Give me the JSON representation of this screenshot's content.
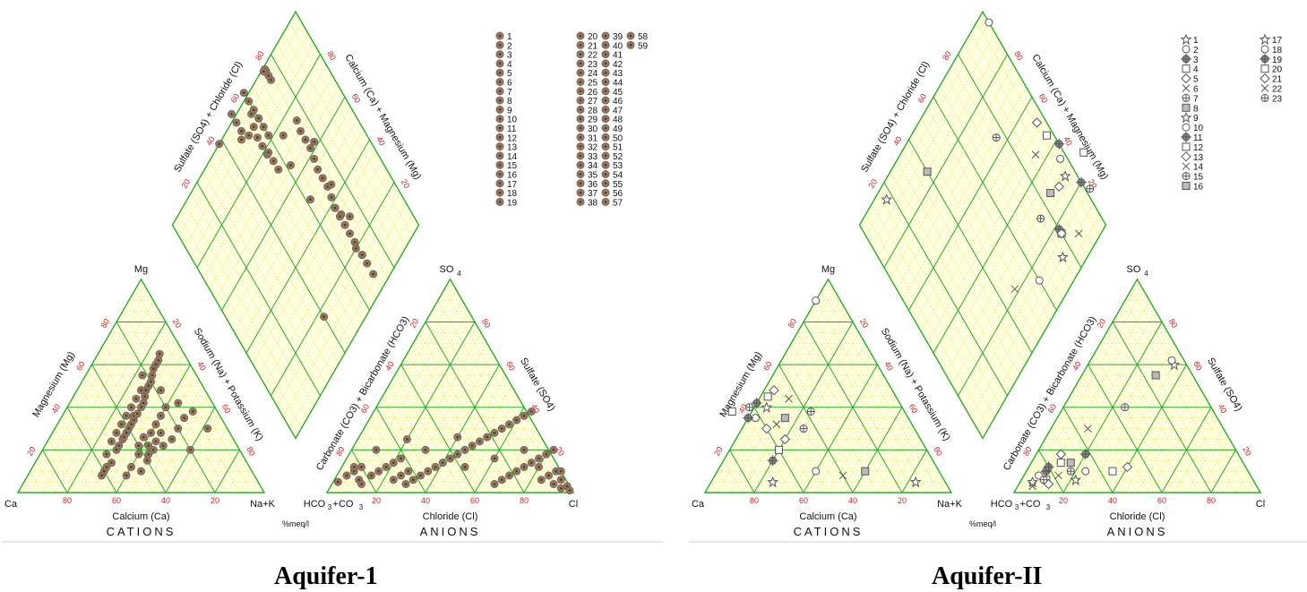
{
  "colors": {
    "fill": "#ffffe0",
    "grid_major": "#22aa22",
    "grid_minor": "#e3e36a",
    "tick": "#cc2222",
    "arrow": "#dd6666",
    "point_fill": "#a0785a",
    "point_edge": "#666666",
    "marker_edge": "#555555",
    "text": "#111111"
  },
  "chart_data": [
    {
      "type": "piper",
      "caption": "Aquifer-1",
      "marker_style": "dot",
      "labels": {
        "mg": "Mg",
        "ca": "Ca",
        "nak": "Na+K",
        "so4": "SO",
        "hco3": "HCO",
        "cl": "Cl",
        "sub4": "4",
        "sub3": "3",
        "co3": "+CO",
        "mg_axis": "Magnesium (Mg)",
        "na_axis": "Sodium (Na) + Potassium (K)",
        "ca_axis": "Calcium (Ca)",
        "cl_axis": "Chloride (Cl)",
        "co3_axis": "Carbonate (CO3) + Bicarbonate (HCO3)",
        "so4_axis": "Sulfate (SO4)",
        "d_so4cl": "Sulfate (SO4) + Chloride (Cl)",
        "d_camg": "Calcium (Ca) + Magnesium (Mg)",
        "cations": "CATIONS",
        "anions": "ANIONS",
        "meq": "%meq/l"
      },
      "ticks": [
        "20",
        "40",
        "60",
        "80"
      ],
      "legend": [
        "1",
        "2",
        "3",
        "4",
        "5",
        "6",
        "7",
        "8",
        "9",
        "10",
        "11",
        "12",
        "13",
        "14",
        "15",
        "16",
        "17",
        "18",
        "19",
        "20",
        "21",
        "22",
        "23",
        "24",
        "25",
        "26",
        "27",
        "28",
        "29",
        "30",
        "31",
        "32",
        "33",
        "34",
        "35",
        "36",
        "37",
        "38",
        "39",
        "40",
        "41",
        "42",
        "43",
        "44",
        "45",
        "46",
        "47",
        "48",
        "49",
        "50",
        "51",
        "52",
        "53",
        "54",
        "55",
        "56",
        "57",
        "58",
        "59"
      ],
      "cation_points": [
        [
          62,
          8
        ],
        [
          60,
          10
        ],
        [
          58,
          12
        ],
        [
          55,
          14
        ],
        [
          50,
          20
        ],
        [
          48,
          22
        ],
        [
          45,
          25
        ],
        [
          44,
          26
        ],
        [
          42,
          28
        ],
        [
          40,
          30
        ],
        [
          38,
          32
        ],
        [
          36,
          34
        ],
        [
          35,
          36
        ],
        [
          33,
          37
        ],
        [
          30,
          40
        ],
        [
          28,
          42
        ],
        [
          26,
          45
        ],
        [
          24,
          48
        ],
        [
          22,
          50
        ],
        [
          20,
          52
        ],
        [
          18,
          55
        ],
        [
          16,
          58
        ],
        [
          14,
          60
        ],
        [
          12,
          62
        ],
        [
          10,
          65
        ],
        [
          45,
          10
        ],
        [
          40,
          15
        ],
        [
          35,
          20
        ],
        [
          30,
          22
        ],
        [
          25,
          25
        ],
        [
          20,
          30
        ],
        [
          15,
          35
        ],
        [
          38,
          18
        ],
        [
          32,
          24
        ],
        [
          28,
          28
        ],
        [
          52,
          8
        ],
        [
          48,
          12
        ],
        [
          42,
          18
        ],
        [
          36,
          22
        ],
        [
          32,
          28
        ],
        [
          28,
          32
        ],
        [
          24,
          36
        ],
        [
          20,
          40
        ],
        [
          42,
          32
        ],
        [
          38,
          36
        ],
        [
          34,
          40
        ],
        [
          30,
          44
        ],
        [
          26,
          48
        ],
        [
          55,
          18
        ],
        [
          50,
          24
        ],
        [
          46,
          28
        ],
        [
          40,
          22
        ],
        [
          36,
          26
        ],
        [
          22,
          55
        ],
        [
          18,
          48
        ],
        [
          14,
          42
        ],
        [
          10,
          38
        ],
        [
          8,
          30
        ],
        [
          20,
          20
        ]
      ],
      "anion_points": [
        [
          2,
          5
        ],
        [
          4,
          8
        ],
        [
          6,
          10
        ],
        [
          8,
          12
        ],
        [
          10,
          6
        ],
        [
          12,
          4
        ],
        [
          14,
          8
        ],
        [
          16,
          10
        ],
        [
          18,
          12
        ],
        [
          20,
          14
        ],
        [
          22,
          16
        ],
        [
          24,
          6
        ],
        [
          26,
          8
        ],
        [
          28,
          10
        ],
        [
          30,
          4
        ],
        [
          32,
          6
        ],
        [
          34,
          8
        ],
        [
          36,
          10
        ],
        [
          38,
          12
        ],
        [
          40,
          14
        ],
        [
          42,
          16
        ],
        [
          44,
          18
        ],
        [
          46,
          20
        ],
        [
          48,
          22
        ],
        [
          50,
          24
        ],
        [
          52,
          26
        ],
        [
          54,
          28
        ],
        [
          56,
          30
        ],
        [
          58,
          32
        ],
        [
          60,
          34
        ],
        [
          62,
          36
        ],
        [
          64,
          38
        ],
        [
          66,
          4
        ],
        [
          68,
          6
        ],
        [
          70,
          8
        ],
        [
          72,
          10
        ],
        [
          74,
          12
        ],
        [
          76,
          14
        ],
        [
          78,
          16
        ],
        [
          80,
          18
        ],
        [
          82,
          20
        ],
        [
          84,
          6
        ],
        [
          86,
          8
        ],
        [
          88,
          10
        ],
        [
          90,
          4
        ],
        [
          92,
          6
        ],
        [
          94,
          2
        ],
        [
          96,
          3
        ],
        [
          98,
          1
        ],
        [
          10,
          20
        ],
        [
          20,
          25
        ],
        [
          30,
          20
        ],
        [
          40,
          26
        ],
        [
          50,
          12
        ],
        [
          60,
          16
        ],
        [
          70,
          20
        ],
        [
          80,
          12
        ],
        [
          90,
          10
        ],
        [
          5,
          12
        ]
      ]
    },
    {
      "type": "piper",
      "caption": "Aquifer-II",
      "marker_style": "mixed",
      "labels": {
        "mg": "Mg",
        "ca": "Ca",
        "nak": "Na+K",
        "so4": "SO",
        "hco3": "HCO",
        "cl": "Cl",
        "sub4": "4",
        "sub3": "3",
        "co3": "+CO",
        "mg_axis": "Magnesium (Mg)",
        "na_axis": "Sodium (Na) + Potassium (K)",
        "ca_axis": "Calcium (Ca)",
        "cl_axis": "Chloride (Cl)",
        "co3_axis": "Carbonate (CO3) + Bicarbonate (HCO3)",
        "so4_axis": "Sulfate (SO4)",
        "d_so4cl": "Sulfate (SO4) + Chloride (Cl)",
        "d_camg": "Calcium (Ca) + Magnesium (Mg)",
        "cations": "CATIONS",
        "anions": "ANIONS",
        "meq": "%meq/l"
      },
      "ticks": [
        "20",
        "40",
        "60",
        "80"
      ],
      "legend": [
        "1",
        "2",
        "3",
        "4",
        "5",
        "6",
        "7",
        "8",
        "9",
        "10",
        "11",
        "12",
        "13",
        "14",
        "15",
        "16",
        "17",
        "18",
        "19",
        "20",
        "21",
        "22",
        "23"
      ],
      "cation_points": [
        [
          70,
          5
        ],
        [
          50,
          10
        ],
        [
          65,
          15
        ],
        [
          60,
          20
        ],
        [
          55,
          25
        ],
        [
          40,
          8
        ],
        [
          45,
          30
        ],
        [
          50,
          35
        ],
        [
          55,
          40
        ],
        [
          62,
          35
        ],
        [
          58,
          42
        ],
        [
          52,
          45
        ],
        [
          48,
          48
        ],
        [
          44,
          44
        ],
        [
          38,
          38
        ],
        [
          30,
          10
        ],
        [
          12,
          5
        ],
        [
          10,
          90
        ],
        [
          65,
          35
        ],
        [
          70,
          38
        ],
        [
          60,
          30
        ],
        [
          55,
          32
        ],
        [
          62,
          40
        ]
      ],
      "anion_points": [
        [
          5,
          5
        ],
        [
          6,
          8
        ],
        [
          8,
          10
        ],
        [
          10,
          6
        ],
        [
          12,
          4
        ],
        [
          14,
          8
        ],
        [
          18,
          10
        ],
        [
          16,
          14
        ],
        [
          22,
          6
        ],
        [
          24,
          10
        ],
        [
          20,
          18
        ],
        [
          35,
          10
        ],
        [
          40,
          12
        ],
        [
          15,
          30
        ],
        [
          25,
          40
        ],
        [
          30,
          55
        ],
        [
          35,
          60
        ],
        [
          33,
          62
        ],
        [
          8,
          12
        ],
        [
          12,
          14
        ],
        [
          10,
          18
        ],
        [
          6,
          3
        ],
        [
          9,
          6
        ]
      ]
    }
  ]
}
